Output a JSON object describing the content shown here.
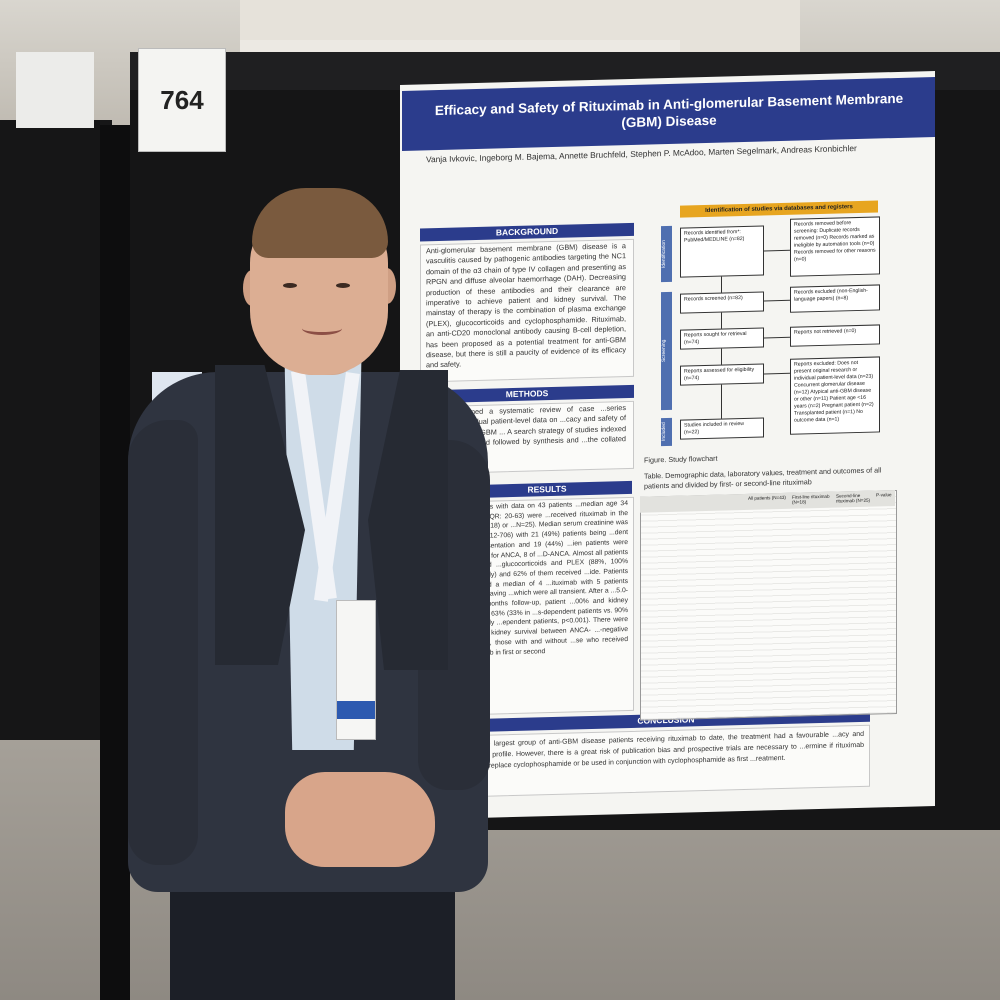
{
  "booth_number": "764",
  "poster": {
    "title": "Efficacy and Safety of Rituximab in Anti-glomerular Basement Membrane (GBM) Disease",
    "authors": "Vanja Ivkovic, Ingeborg M. Bajema, Annette Bruchfeld, Stephen P. McAdoo, Marten Segelmark, Andreas Kronbichler",
    "background_heading": "BACKGROUND",
    "background_text": "Anti-glomerular basement membrane (GBM) disease is a vasculitis caused by pathogenic antibodies targeting the NC1 domain of the α3 chain of type IV collagen and presenting as RPGN and diffuse alveolar haemorrhage (DAH). Decreasing production of these antibodies and their clearance are imperative to achieve patient and kidney survival. The mainstay of therapy is the combination of plasma exchange (PLEX), glucocorticoids and cyclophosphamide. Rituximab, an anti-CD20 monoclonal antibody causing B-cell depletion, has been proposed as a potential treatment for anti-GBM disease, but there is still a paucity of evidence of its efficacy and safety.",
    "methods_heading": "METHODS",
    "methods_text": "...ave performed a systematic review of case ...series providing individual patient-level data on ...cacy and safety of rituximab in anti-GBM ... A search strategy of studies indexed in ...was performed followed by synthesis and ...the collated data.",
    "results_heading": "RESULTS",
    "results_text": "...studies with data on 43 patients ...median age 34 years, IQR: 20-63) were ...received rituximab in the first (N=18) or ...N=25). Median serum creatinine was 416 ...212-706) with 21 (49%) patients being ...dent on presentation and 19 (44%) ...ien patients were positive for ANCA, 8 of ...D-ANCA. Almost all patients received ...glucocorticoids and PLEX (88%, 100% ...ectively) and 62% of them received ...ide. Patients received a median of 4 ...ituximab with 5 patients (12%) having ...which were all transient. After a ...5.0-33.0) months follow-up, patient ...00% and kidney survival 63% (33% in ...s-dependent patients vs. 90% in initially ...ependent patients, p<0.001). There were ...es in kidney survival between ANCA- ...-negative patients, those with and without ...se who received rituximab in first or second",
    "conclusion_heading": "CONCLUSION",
    "conclusion_text": "...s, the largest group of anti-GBM disease patients receiving rituximab to date, the treatment had a favourable ...acy and efficacy profile. However, there is a great risk of publication bias and prospective trials are necessary to ...ermine if rituximab should replace cyclophosphamide or be used in conjunction with cyclophosphamide as first ...reatment.",
    "flowchart": {
      "header": "Identification of studies via databases and registers",
      "stage_identification": "Identification",
      "stage_screening": "Screening",
      "stage_included": "Included",
      "identified": "Records identified from*: PubMed/MEDLINE (n=82)",
      "removed": "Records removed before screening: Duplicate records removed (n=0) Records marked as ineligible by automation tools (n=0) Records removed for other reasons (n=0)",
      "screened": "Records screened (n=82)",
      "excluded": "Records excluded (non-English-language papers) (n=8)",
      "sought": "Reports sought for retrieval (n=74)",
      "not_retrieved": "Reports not retrieved (n=0)",
      "assessed": "Reports assessed for eligibility (n=74)",
      "excluded_reasons": "Reports excluded: Does not present original research or individual patient-level data (n=23) Concurrent glomerular disease (n=12) Atypical anti-GBM disease or other (n=11) Patient age <16 years (n=2) Pregnant patient (n=2) Transplanted patient (n=1) No outcome data (n=1)",
      "included": "Studies included in review (n=22)"
    },
    "figure_caption": "Figure. Study flowchart",
    "table_caption": "Table. Demographic data, laboratory values, treatment and outcomes of all patients and divided by first- or second-line rituximab",
    "table_columns": [
      "All patients (N=43)",
      "First-line rituximab (N=18)",
      "Second-line rituximab (N=25)",
      "P-value"
    ]
  }
}
